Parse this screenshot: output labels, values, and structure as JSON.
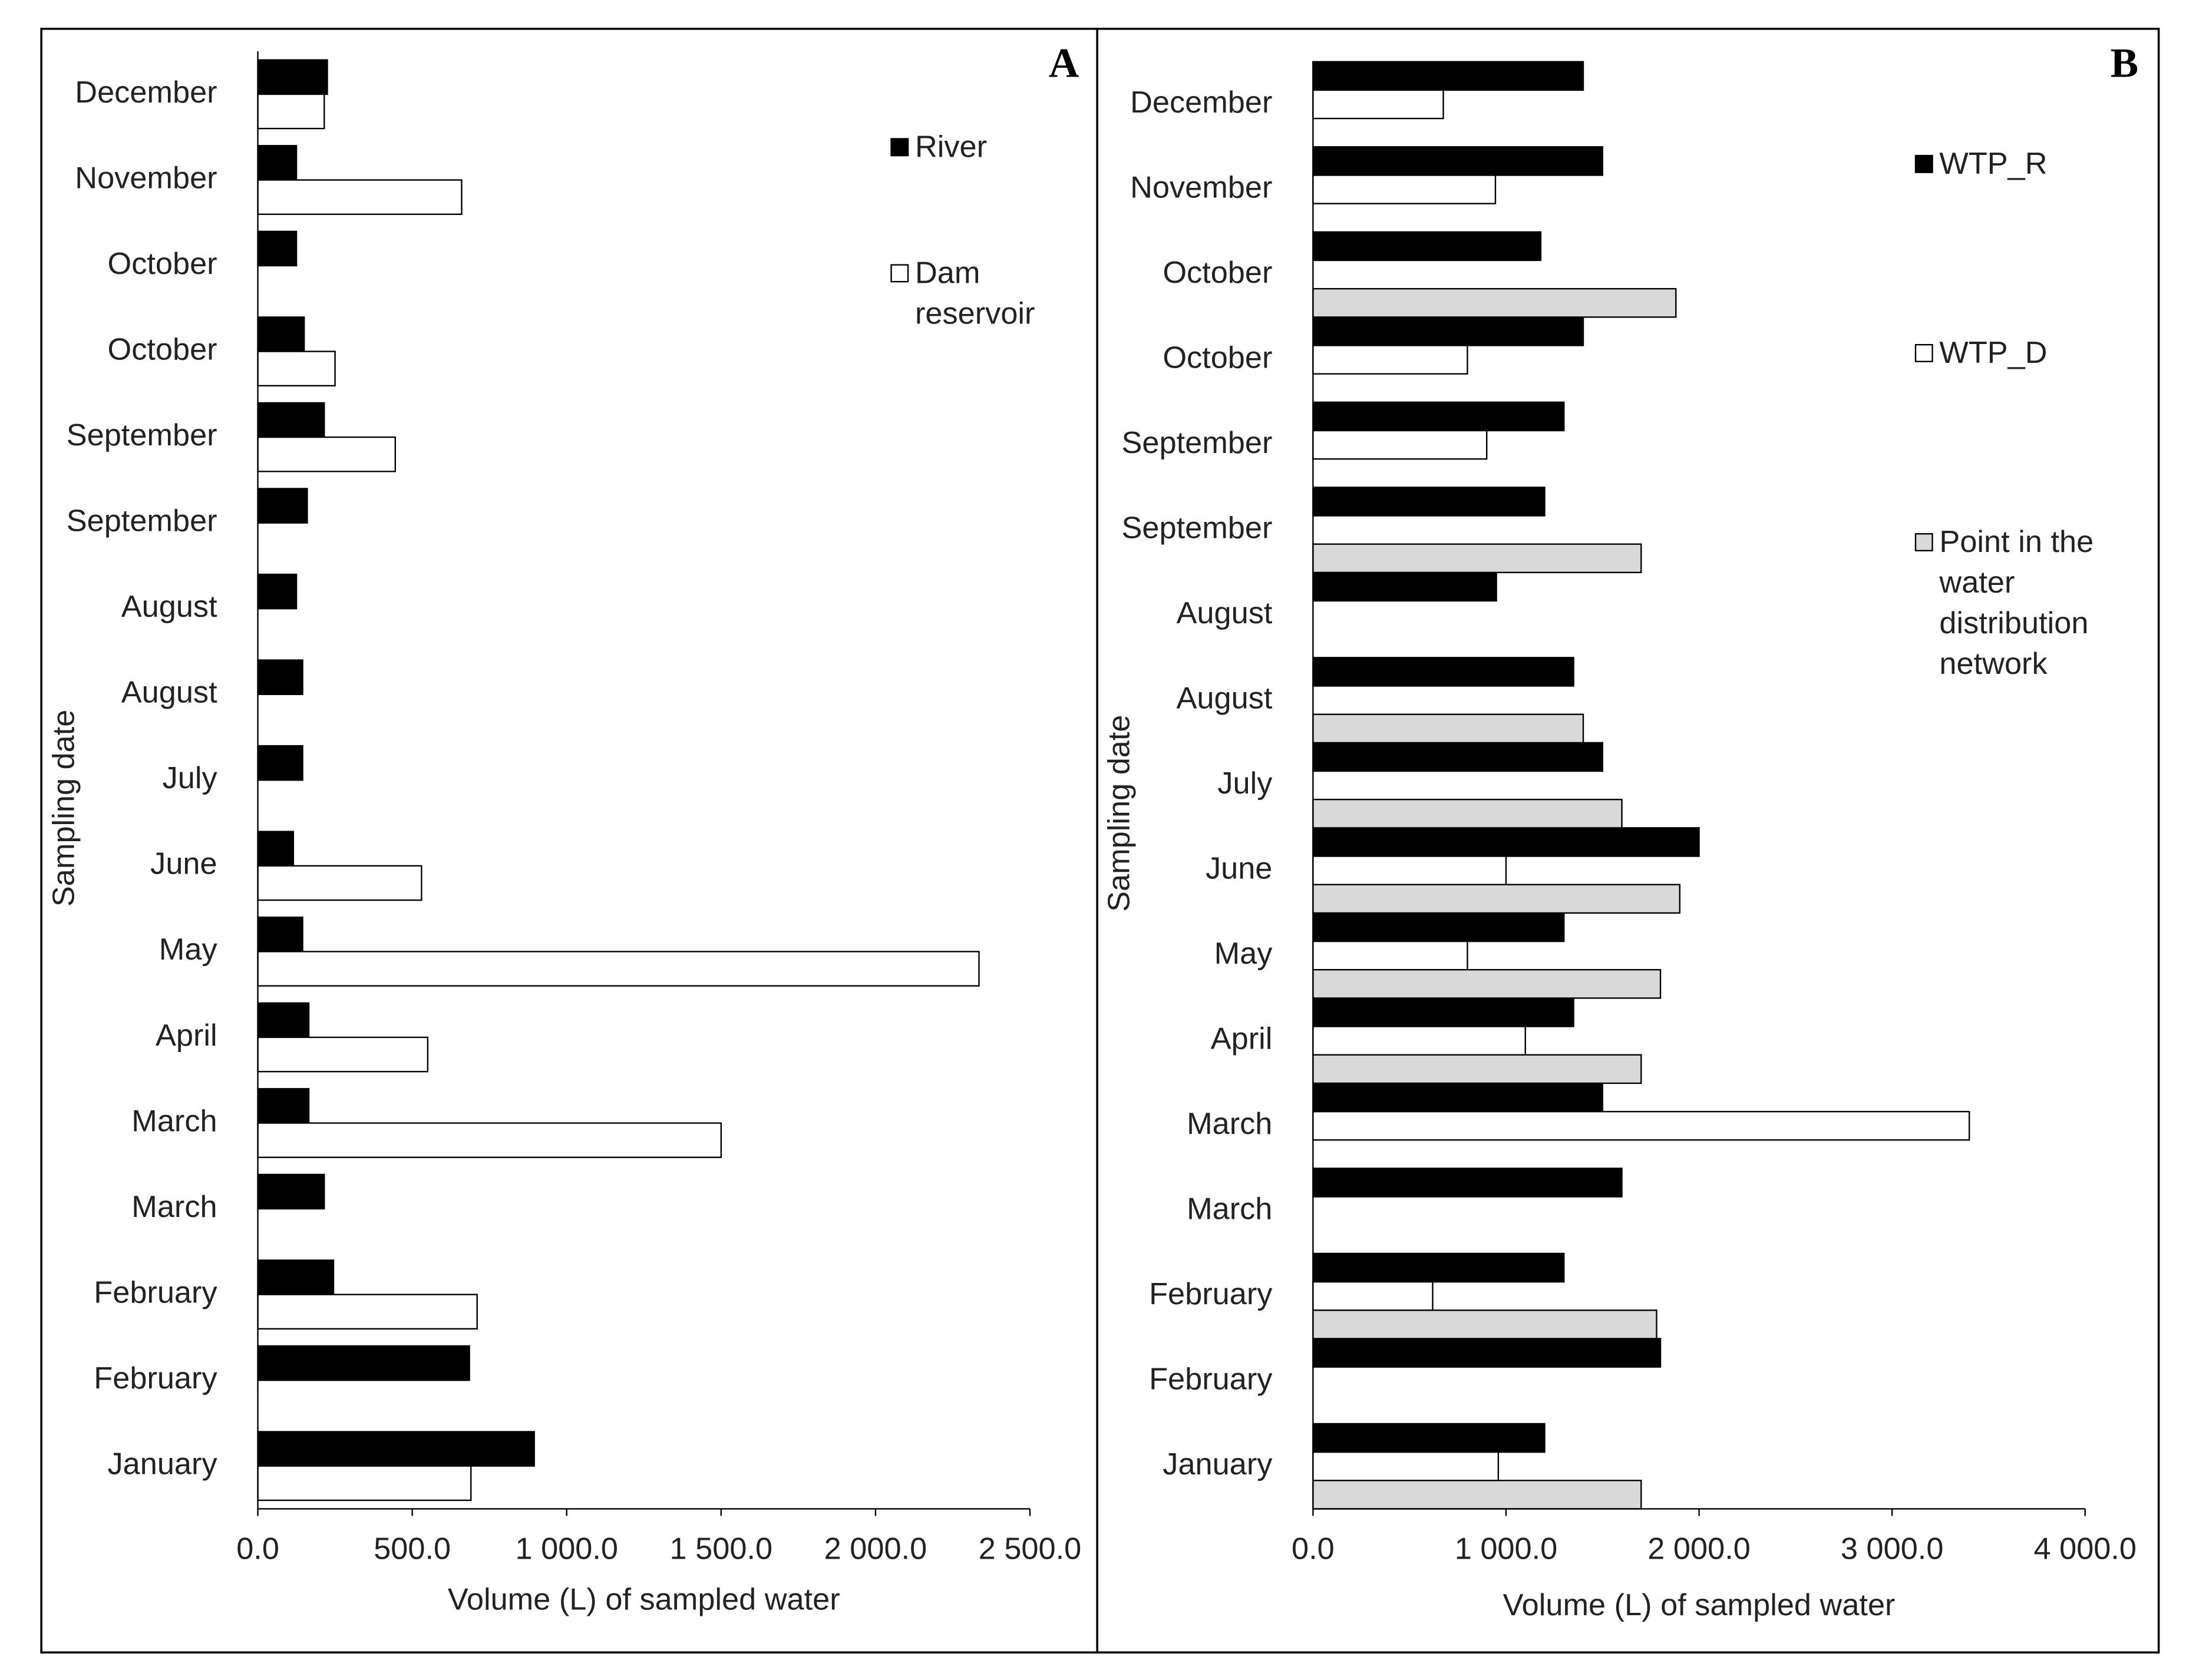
{
  "chart_data": [
    {
      "type": "bar",
      "orientation": "horizontal",
      "panel_label": "A",
      "xlabel": "Volume (L) of sampled water",
      "ylabel": "Sampling date",
      "categories": [
        "December",
        "November",
        "October",
        "October",
        "September",
        "September",
        "August",
        "August",
        "July",
        "June",
        "May",
        "April",
        "March",
        "March",
        "February",
        "February",
        "January"
      ],
      "series": [
        {
          "name": "River",
          "color": "#000000",
          "values": [
            225,
            125,
            125,
            150,
            215,
            160,
            125,
            145,
            145,
            115,
            145,
            165,
            165,
            215,
            245,
            685,
            895
          ]
        },
        {
          "name": "Dam reservoir",
          "color": "#ffffff",
          "values": [
            215,
            660,
            null,
            250,
            445,
            null,
            null,
            null,
            null,
            530,
            2335,
            550,
            1500,
            null,
            710,
            null,
            690
          ]
        }
      ],
      "xlim": [
        0,
        2500
      ],
      "xticks": [
        {
          "value": 0,
          "label": "0.0"
        },
        {
          "value": 500,
          "label": "500.0"
        },
        {
          "value": 1000,
          "label": "1 000.0"
        },
        {
          "value": 1500,
          "label": "1 500.0"
        },
        {
          "value": 2000,
          "label": "2 000.0"
        },
        {
          "value": 2500,
          "label": "2 500.0"
        }
      ],
      "legend": "upper right",
      "grid": false
    },
    {
      "type": "bar",
      "orientation": "horizontal",
      "panel_label": "B",
      "xlabel": "Volume (L) of sampled water",
      "ylabel": "Sampling date",
      "categories": [
        "December",
        "November",
        "October",
        "October",
        "September",
        "September",
        "August",
        "August",
        "July",
        "June",
        "May",
        "April",
        "March",
        "March",
        "February",
        "February",
        "January"
      ],
      "series": [
        {
          "name": "WTP_R",
          "color": "#000000",
          "values": [
            1400,
            1500,
            1180,
            1400,
            1300,
            1200,
            950,
            1350,
            1500,
            2000,
            1300,
            1350,
            1500,
            1600,
            1300,
            1800,
            1200
          ]
        },
        {
          "name": "WTP_D",
          "color": "#ffffff",
          "values": [
            675,
            945,
            null,
            800,
            900,
            null,
            null,
            null,
            null,
            1000,
            800,
            1100,
            3400,
            null,
            620,
            null,
            960
          ]
        },
        {
          "name": "Point in the water distribution network",
          "color": "#d9d9d9",
          "values": [
            null,
            null,
            1880,
            null,
            null,
            1700,
            null,
            1400,
            1600,
            1900,
            1800,
            1700,
            null,
            null,
            1780,
            null,
            1700
          ]
        }
      ],
      "xlim": [
        0,
        4000
      ],
      "xticks": [
        {
          "value": 0,
          "label": "0.0"
        },
        {
          "value": 1000,
          "label": "1 000.0"
        },
        {
          "value": 2000,
          "label": "2 000.0"
        },
        {
          "value": 3000,
          "label": "3 000.0"
        },
        {
          "value": 4000,
          "label": "4 000.0"
        }
      ],
      "legend": "upper right",
      "grid": false
    }
  ]
}
